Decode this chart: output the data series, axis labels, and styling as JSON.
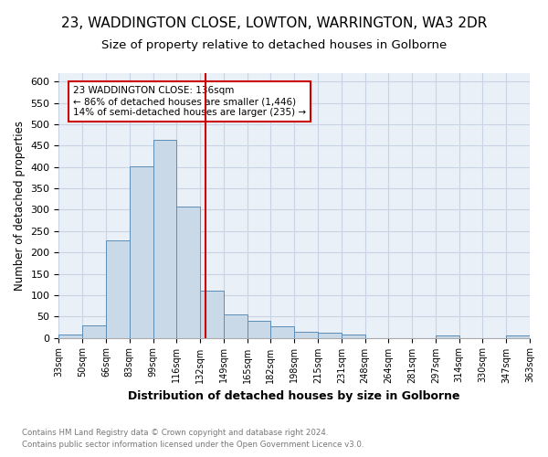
{
  "title1": "23, WADDINGTON CLOSE, LOWTON, WARRINGTON, WA3 2DR",
  "title2": "Size of property relative to detached houses in Golborne",
  "xlabel": "Distribution of detached houses by size in Golborne",
  "ylabel": "Number of detached properties",
  "bin_labels": [
    "33sqm",
    "50sqm",
    "66sqm",
    "83sqm",
    "99sqm",
    "116sqm",
    "132sqm",
    "149sqm",
    "165sqm",
    "182sqm",
    "198sqm",
    "215sqm",
    "231sqm",
    "248sqm",
    "264sqm",
    "281sqm",
    "297sqm",
    "314sqm",
    "330sqm",
    "347sqm",
    "363sqm"
  ],
  "bar_values": [
    7,
    30,
    228,
    401,
    463,
    307,
    110,
    54,
    39,
    27,
    13,
    12,
    7,
    0,
    0,
    0,
    5,
    0,
    0,
    5
  ],
  "bar_color": "#c9d9e8",
  "bar_edge_color": "#5b8db8",
  "vline_color": "#cc0000",
  "annotation_title": "23 WADDINGTON CLOSE: 136sqm",
  "annotation_line1": "← 86% of detached houses are smaller (1,446)",
  "annotation_line2": "14% of semi-detached houses are larger (235) →",
  "annotation_box_color": "#ffffff",
  "annotation_box_edge": "#cc0000",
  "ylim": [
    0,
    620
  ],
  "yticks": [
    0,
    50,
    100,
    150,
    200,
    250,
    300,
    350,
    400,
    450,
    500,
    550,
    600
  ],
  "footer1": "Contains HM Land Registry data © Crown copyright and database right 2024.",
  "footer2": "Contains public sector information licensed under the Open Government Licence v3.0.",
  "bg_color": "#ffffff",
  "axes_bg_color": "#eaf0f8",
  "grid_color": "#c8d4e4",
  "title1_fontsize": 11,
  "title2_fontsize": 9.5
}
